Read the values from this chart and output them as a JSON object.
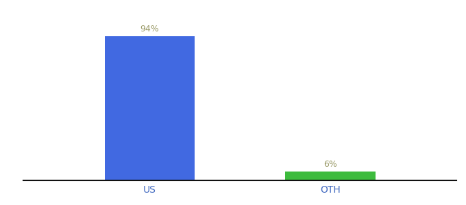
{
  "categories": [
    "US",
    "OTH"
  ],
  "values": [
    94,
    6
  ],
  "bar_colors": [
    "#4169E1",
    "#3DBB3D"
  ],
  "bar_labels": [
    "94%",
    "6%"
  ],
  "background_color": "#ffffff",
  "label_color": "#999966",
  "tick_color": "#4169C0",
  "axis_line_color": "#111111",
  "ylim": [
    0,
    108
  ],
  "bar_width": 0.5,
  "figsize": [
    6.8,
    3.0
  ],
  "dpi": 100
}
